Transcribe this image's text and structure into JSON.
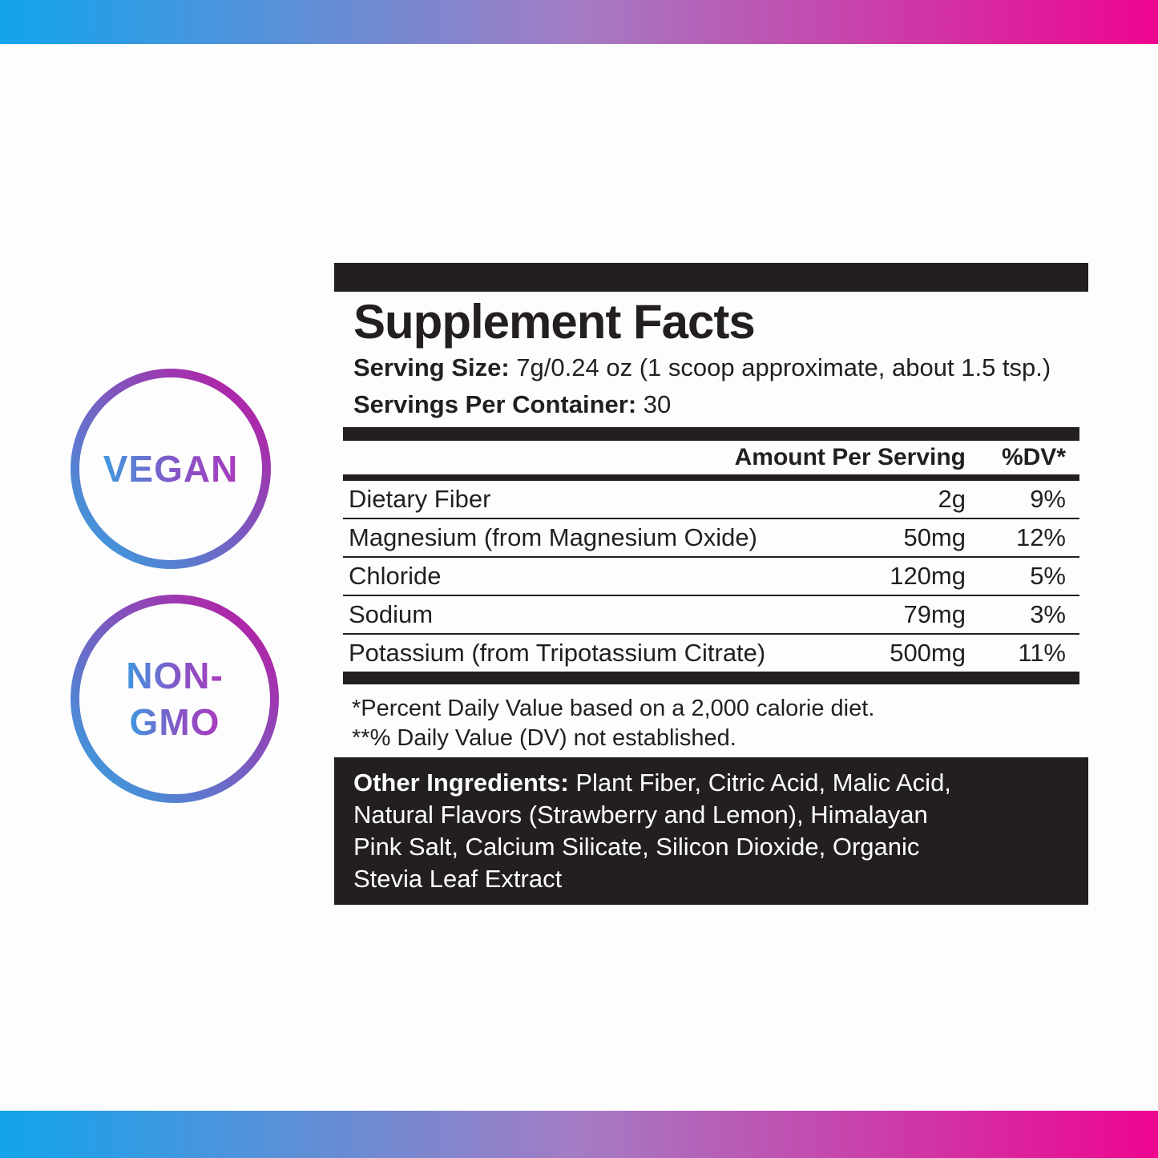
{
  "colors": {
    "gradient_left": "#12a4ec",
    "gradient_mid": "#a47cc4",
    "gradient_right": "#ee0590",
    "label_black": "#231f20",
    "badge_text_blue": "#3f97df",
    "badge_text_magenta": "#a93cbe"
  },
  "badges": {
    "vegan": {
      "label": "VEGAN"
    },
    "non_gmo": {
      "line1": "NON-",
      "line2": "GMO"
    }
  },
  "facts": {
    "title": "Supplement Facts",
    "serving_size_label": "Serving Size:",
    "serving_size_value": " 7g/0.24 oz (1 scoop approximate, about 1.5 tsp.)",
    "servings_label": "Servings Per Container:",
    "servings_value": " 30",
    "header": {
      "amount": "Amount Per Serving",
      "dv": "%DV*"
    },
    "rows": [
      {
        "name": "Dietary Fiber",
        "amount": "2g",
        "dv": "9%"
      },
      {
        "name": "Magnesium (from Magnesium Oxide)",
        "amount": "50mg",
        "dv": "12%"
      },
      {
        "name": "Chloride",
        "amount": "120mg",
        "dv": "5%"
      },
      {
        "name": "Sodium",
        "amount": "79mg",
        "dv": "3%"
      },
      {
        "name": "Potassium (from Tripotassium Citrate)",
        "amount": "500mg",
        "dv": "11%"
      }
    ],
    "footnotes": [
      "*Percent Daily Value based on a 2,000 calorie diet.",
      "**% Daily Value (DV) not established."
    ],
    "other_ingredients": {
      "label": "Other Ingredients:",
      "line1_rest": " Plant Fiber, Citric Acid, Malic Acid,",
      "line2": "Natural Flavors (Strawberry and Lemon), Himalayan",
      "line3": "Pink Salt, Calcium Silicate, Silicon Dioxide, Organic",
      "line4": "Stevia Leaf Extract"
    }
  }
}
